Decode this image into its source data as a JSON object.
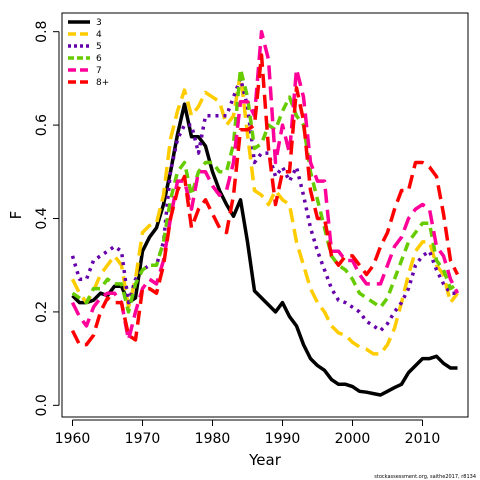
{
  "footer": "stockassessment.org, saithe2017, r8134",
  "chart_data": {
    "type": "line",
    "xlabel": "Year",
    "ylabel": "F",
    "xlim": [
      1958.5,
      2016.5
    ],
    "ylim": [
      -0.025,
      0.84
    ],
    "xticks": [
      1960,
      1970,
      1980,
      1990,
      2000,
      2010
    ],
    "yticks": [
      0.0,
      0.2,
      0.4,
      0.6,
      0.8
    ],
    "ytick_labels": [
      "0.0",
      "0.2",
      "0.4",
      "0.6",
      "0.8"
    ],
    "grid": false,
    "legend_position": "top-left",
    "x": [
      1960,
      1961,
      1962,
      1963,
      1964,
      1965,
      1966,
      1967,
      1968,
      1969,
      1970,
      1971,
      1972,
      1973,
      1974,
      1975,
      1976,
      1977,
      1978,
      1979,
      1980,
      1981,
      1982,
      1983,
      1984,
      1985,
      1986,
      1987,
      1988,
      1989,
      1990,
      1991,
      1992,
      1993,
      1994,
      1995,
      1996,
      1997,
      1998,
      1999,
      2000,
      2001,
      2002,
      2003,
      2004,
      2005,
      2006,
      2007,
      2008,
      2009,
      2010,
      2011,
      2012,
      2013,
      2014,
      2015
    ],
    "series": [
      {
        "name": "3",
        "color": "#000000",
        "dash": "solid",
        "values": [
          0.235,
          0.22,
          0.22,
          0.225,
          0.24,
          0.235,
          0.255,
          0.255,
          0.22,
          0.23,
          0.33,
          0.36,
          0.38,
          0.43,
          0.5,
          0.58,
          0.645,
          0.575,
          0.575,
          0.555,
          0.5,
          0.46,
          0.43,
          0.405,
          0.44,
          0.35,
          0.245,
          0.23,
          0.215,
          0.2,
          0.22,
          0.19,
          0.17,
          0.13,
          0.1,
          0.085,
          0.075,
          0.055,
          0.045,
          0.045,
          0.04,
          0.03,
          0.028,
          0.025,
          0.022,
          0.03,
          0.038,
          0.045,
          0.07,
          0.085,
          0.1,
          0.1,
          0.105,
          0.09,
          0.08,
          0.08
        ]
      },
      {
        "name": "4",
        "color": "#ffcc00",
        "dash": "longdash",
        "values": [
          0.27,
          0.24,
          0.22,
          0.245,
          0.28,
          0.3,
          0.32,
          0.3,
          0.21,
          0.27,
          0.37,
          0.385,
          0.39,
          0.45,
          0.57,
          0.63,
          0.675,
          0.62,
          0.64,
          0.67,
          0.66,
          0.65,
          0.6,
          0.62,
          0.71,
          0.58,
          0.46,
          0.45,
          0.43,
          0.46,
          0.44,
          0.43,
          0.35,
          0.3,
          0.25,
          0.22,
          0.2,
          0.17,
          0.155,
          0.15,
          0.135,
          0.125,
          0.12,
          0.11,
          0.11,
          0.13,
          0.165,
          0.22,
          0.28,
          0.33,
          0.35,
          0.35,
          0.3,
          0.28,
          0.22,
          0.24
        ]
      },
      {
        "name": "5",
        "color": "#6600aa",
        "dash": "dotted",
        "values": [
          0.32,
          0.27,
          0.27,
          0.31,
          0.32,
          0.33,
          0.34,
          0.33,
          0.22,
          0.27,
          0.29,
          0.3,
          0.3,
          0.35,
          0.5,
          0.57,
          0.6,
          0.6,
          0.54,
          0.62,
          0.62,
          0.62,
          0.62,
          0.66,
          0.7,
          0.64,
          0.52,
          0.54,
          0.54,
          0.49,
          0.51,
          0.48,
          0.51,
          0.45,
          0.38,
          0.33,
          0.29,
          0.25,
          0.225,
          0.22,
          0.21,
          0.2,
          0.18,
          0.17,
          0.16,
          0.175,
          0.2,
          0.22,
          0.25,
          0.3,
          0.32,
          0.33,
          0.29,
          0.26,
          0.24,
          0.24
        ]
      },
      {
        "name": "6",
        "color": "#66cc00",
        "dash": "dashed",
        "values": [
          0.24,
          0.23,
          0.22,
          0.25,
          0.25,
          0.27,
          0.26,
          0.26,
          0.2,
          0.26,
          0.29,
          0.3,
          0.3,
          0.35,
          0.44,
          0.5,
          0.52,
          0.45,
          0.5,
          0.52,
          0.52,
          0.5,
          0.5,
          0.56,
          0.72,
          0.66,
          0.55,
          0.56,
          0.6,
          0.59,
          0.63,
          0.66,
          0.62,
          0.6,
          0.5,
          0.44,
          0.38,
          0.32,
          0.3,
          0.29,
          0.27,
          0.24,
          0.23,
          0.22,
          0.21,
          0.23,
          0.27,
          0.31,
          0.35,
          0.37,
          0.39,
          0.39,
          0.31,
          0.29,
          0.25,
          0.26
        ]
      },
      {
        "name": "7",
        "color": "#ff0099",
        "dash": "longdash",
        "values": [
          0.22,
          0.19,
          0.17,
          0.21,
          0.23,
          0.24,
          0.24,
          0.22,
          0.14,
          0.2,
          0.25,
          0.27,
          0.26,
          0.31,
          0.4,
          0.48,
          0.48,
          0.42,
          0.5,
          0.5,
          0.47,
          0.45,
          0.46,
          0.52,
          0.65,
          0.65,
          0.62,
          0.8,
          0.74,
          0.52,
          0.6,
          0.54,
          0.72,
          0.66,
          0.52,
          0.48,
          0.48,
          0.33,
          0.33,
          0.31,
          0.31,
          0.28,
          0.26,
          0.26,
          0.26,
          0.3,
          0.34,
          0.36,
          0.4,
          0.42,
          0.43,
          0.42,
          0.34,
          0.32,
          0.27,
          0.24
        ]
      },
      {
        "name": "8+",
        "color": "#ff0000",
        "dash": "longdash",
        "values": [
          0.16,
          0.13,
          0.13,
          0.15,
          0.2,
          0.23,
          0.22,
          0.22,
          0.15,
          0.14,
          0.25,
          0.25,
          0.24,
          0.3,
          0.4,
          0.46,
          0.49,
          0.38,
          0.42,
          0.44,
          0.41,
          0.38,
          0.37,
          0.45,
          0.59,
          0.59,
          0.6,
          0.75,
          0.55,
          0.43,
          0.5,
          0.5,
          0.68,
          0.61,
          0.46,
          0.4,
          0.4,
          0.32,
          0.3,
          0.32,
          0.32,
          0.3,
          0.28,
          0.3,
          0.34,
          0.37,
          0.42,
          0.46,
          0.46,
          0.52,
          0.52,
          0.51,
          0.49,
          0.41,
          0.31,
          0.28
        ]
      }
    ]
  }
}
